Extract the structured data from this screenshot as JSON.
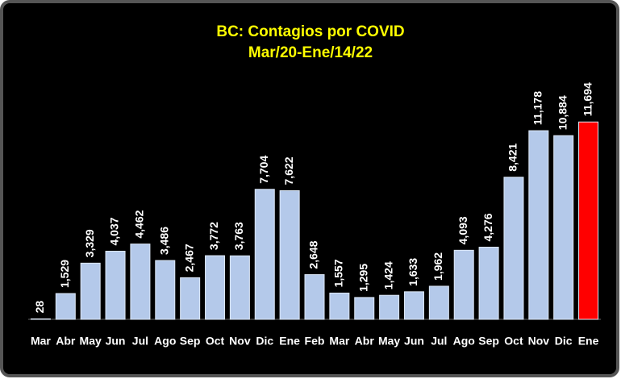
{
  "chart_data": {
    "type": "bar",
    "title": "BC: Contagios por COVID",
    "subtitle": "Mar/20-Ene/14/22",
    "categories": [
      "Mar",
      "Abr",
      "May",
      "Jun",
      "Jul",
      "Ago",
      "Sep",
      "Oct",
      "Nov",
      "Dic",
      "Ene",
      "Feb",
      "Mar",
      "Abr",
      "May",
      "Jun",
      "Jul",
      "Ago",
      "Sep",
      "Oct",
      "Nov",
      "Dic",
      "Ene"
    ],
    "values": [
      28,
      1529,
      3329,
      4037,
      4462,
      3486,
      2467,
      3772,
      3763,
      7704,
      7622,
      2648,
      1557,
      1295,
      1424,
      1633,
      1962,
      4093,
      4276,
      8421,
      11178,
      10884,
      11694
    ],
    "value_labels": [
      "28",
      "1,529",
      "3,329",
      "4,037",
      "4,462",
      "3,486",
      "2,467",
      "3,772",
      "3,763",
      "7,704",
      "7,622",
      "2,648",
      "1,557",
      "1,295",
      "1,424",
      "1,633",
      "1,962",
      "4,093",
      "4,276",
      "8,421",
      "11,178",
      "10,884",
      "11,694"
    ],
    "colors": [
      "#b4c9ea",
      "#b4c9ea",
      "#b4c9ea",
      "#b4c9ea",
      "#b4c9ea",
      "#b4c9ea",
      "#b4c9ea",
      "#b4c9ea",
      "#b4c9ea",
      "#b4c9ea",
      "#b4c9ea",
      "#b4c9ea",
      "#b4c9ea",
      "#b4c9ea",
      "#b4c9ea",
      "#b4c9ea",
      "#b4c9ea",
      "#b4c9ea",
      "#b4c9ea",
      "#b4c9ea",
      "#b4c9ea",
      "#b4c9ea",
      "#ff0000"
    ],
    "ylim": [
      0,
      14000
    ]
  }
}
